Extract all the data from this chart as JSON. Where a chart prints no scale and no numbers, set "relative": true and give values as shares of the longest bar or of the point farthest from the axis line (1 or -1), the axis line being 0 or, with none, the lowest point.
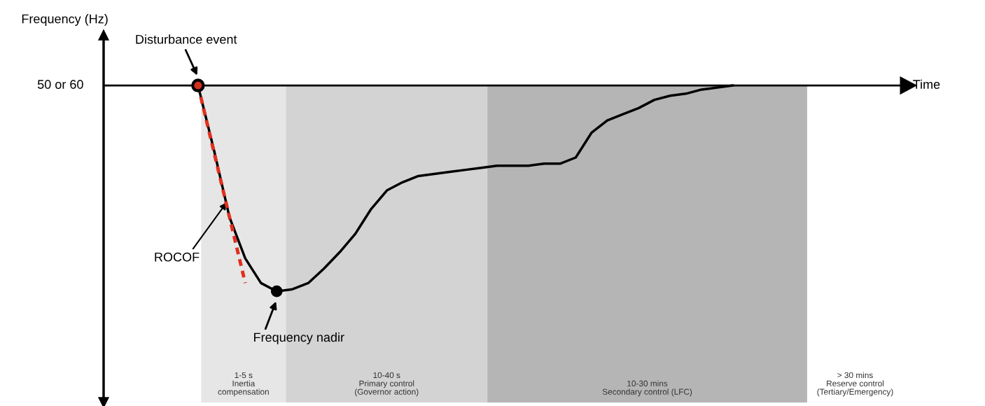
{
  "chart_data": {
    "type": "line",
    "relative": true,
    "ylabel": "Frequency (Hz)",
    "xlabel": "Time",
    "categories": [
      null,
      null,
      null,
      null,
      null,
      null,
      null,
      null,
      null,
      null,
      null,
      null,
      null,
      null,
      null,
      null,
      null,
      null,
      null,
      null,
      null,
      null,
      null,
      null,
      null,
      null,
      null,
      null,
      null,
      null,
      null,
      null,
      null,
      null,
      null,
      null,
      null,
      null,
      null,
      null,
      null,
      null,
      null,
      null,
      null,
      null,
      null,
      null,
      null,
      null,
      null
    ],
    "series": [
      {
        "color": "#000000",
        "line_style": "solid",
        "values": [
          null,
          null,
          null,
          null,
          null,
          null,
          0,
          -0.31,
          -0.64,
          -0.84,
          -0.96,
          -1,
          -0.99,
          -0.96,
          -0.89,
          -0.81,
          -0.72,
          -0.6,
          -0.51,
          -0.47,
          -0.44,
          -0.43,
          -0.42,
          -0.41,
          -0.4,
          -0.39,
          -0.39,
          -0.39,
          -0.38,
          -0.38,
          -0.35,
          -0.23,
          -0.17,
          -0.14,
          -0.11,
          -0.07,
          -0.05,
          -0.04,
          -0.02,
          -0.01,
          0,
          null,
          null,
          null,
          null,
          null,
          null,
          null,
          null,
          null,
          null
        ]
      },
      {
        "color": "#e0301e",
        "line_style": "dashed",
        "values": [
          null,
          null,
          null,
          null,
          null,
          null,
          0,
          -0.32,
          -0.64,
          -0.96,
          null,
          null,
          null,
          null,
          null,
          null,
          null,
          null,
          null,
          null,
          null,
          null,
          null,
          null,
          null,
          null,
          null,
          null,
          null,
          null,
          null,
          null,
          null,
          null,
          null,
          null,
          null,
          null,
          null,
          null,
          null,
          null,
          null,
          null,
          null,
          null,
          null,
          null,
          null,
          null,
          null
        ]
      }
    ],
    "ref_lines": [
      {
        "axis": "y",
        "value": 0,
        "label": "50 or 60",
        "color": "#000000"
      }
    ],
    "annotations": [
      "Disturbance event",
      "ROCOF",
      "Frequency nadir",
      "1-5 s\nInertia\ncompensation",
      "10-40 s\nPrimary control\n(Governor action)",
      "10-30 mins\nSecondary control (LFC)",
      "> 30 mins\nReserve control\n(Tertiary/Emergency)"
    ]
  }
}
